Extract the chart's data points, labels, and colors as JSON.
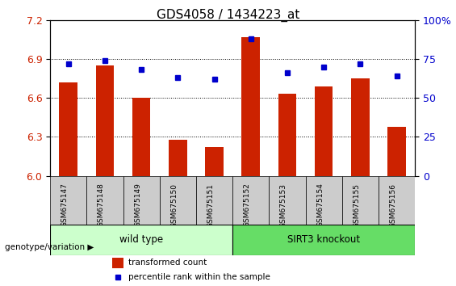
{
  "title": "GDS4058 / 1434223_at",
  "samples": [
    "GSM675147",
    "GSM675148",
    "GSM675149",
    "GSM675150",
    "GSM675151",
    "GSM675152",
    "GSM675153",
    "GSM675154",
    "GSM675155",
    "GSM675156"
  ],
  "transformed_count": [
    6.72,
    6.85,
    6.6,
    6.28,
    6.22,
    7.07,
    6.63,
    6.69,
    6.75,
    6.38
  ],
  "percentile_rank": [
    72,
    74,
    68,
    63,
    62,
    88,
    66,
    70,
    72,
    64
  ],
  "ylim_left": [
    6.0,
    7.2
  ],
  "ylim_right": [
    0,
    100
  ],
  "yticks_left": [
    6.0,
    6.3,
    6.6,
    6.9,
    7.2
  ],
  "yticks_right": [
    0,
    25,
    50,
    75,
    100
  ],
  "ytick_right_labels": [
    "0",
    "25",
    "50",
    "75",
    "100%"
  ],
  "bar_color": "#cc2200",
  "dot_color": "#0000cc",
  "wild_type_indices": [
    0,
    1,
    2,
    3,
    4
  ],
  "knockout_indices": [
    5,
    6,
    7,
    8,
    9
  ],
  "wild_type_label": "wild type",
  "knockout_label": "SIRT3 knockout",
  "wild_type_color": "#ccffcc",
  "knockout_color": "#66dd66",
  "group_label": "genotype/variation",
  "legend_bar_label": "transformed count",
  "legend_dot_label": "percentile rank within the sample",
  "tick_label_color_left": "#cc2200",
  "tick_label_color_right": "#0000cc",
  "xticklabel_bg": "#cccccc"
}
